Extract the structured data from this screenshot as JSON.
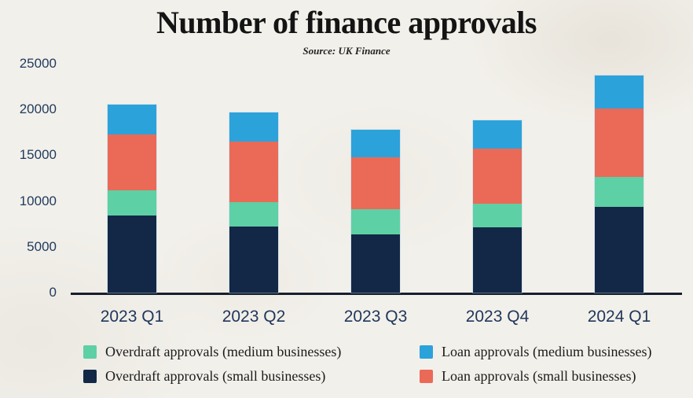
{
  "page": {
    "title": "Number of finance approvals",
    "subtitle": "Source: UK Finance"
  },
  "colors": {
    "background": "#f2f0ea",
    "axis_line": "#161f2e",
    "axis_label": "#1e3a5e",
    "title_text": "#141414",
    "overdraft_small": "#132846",
    "overdraft_medium": "#5ED0A5",
    "loan_small": "#EA6A57",
    "loan_medium": "#2CA2DB"
  },
  "chart_data": {
    "type": "bar",
    "stacked": true,
    "title": "Number of finance approvals",
    "subtitle": "Source: UK Finance",
    "xlabel": "",
    "ylabel": "",
    "categories": [
      "2023 Q1",
      "2023 Q2",
      "2023 Q3",
      "2023 Q4",
      "2024 Q1"
    ],
    "series": [
      {
        "name": "Overdraft approvals (small businesses)",
        "color": "#132846",
        "values": [
          8400,
          7200,
          6400,
          7100,
          9400
        ]
      },
      {
        "name": "Overdraft approvals (medium businesses)",
        "color": "#5ED0A5",
        "values": [
          2800,
          2700,
          2700,
          2600,
          3200
        ]
      },
      {
        "name": "Loan approvals (small businesses)",
        "color": "#EA6A57",
        "values": [
          6100,
          6600,
          5700,
          6000,
          7500
        ]
      },
      {
        "name": "Loan approvals (medium businesses)",
        "color": "#2CA2DB",
        "values": [
          3200,
          3200,
          3000,
          3100,
          3600
        ]
      }
    ],
    "stack_order_bottom_to_top": [
      "Overdraft approvals (small businesses)",
      "Overdraft approvals (medium businesses)",
      "Loan approvals (small businesses)",
      "Loan approvals (medium businesses)"
    ],
    "totals": [
      20500,
      19700,
      17800,
      18800,
      23700
    ],
    "ylim": [
      0,
      25000
    ],
    "y_ticks": [
      0,
      5000,
      10000,
      15000,
      20000,
      25000
    ],
    "grid": false,
    "legend_position": "bottom"
  },
  "legend": {
    "columns": [
      {
        "items": [
          {
            "label": "Overdraft approvals (medium businesses)",
            "color": "#5ED0A5"
          },
          {
            "label": "Overdraft approvals (small businesses)",
            "color": "#132846"
          }
        ]
      },
      {
        "items": [
          {
            "label": "Loan approvals (medium businesses)",
            "color": "#2CA2DB"
          },
          {
            "label": "Loan approvals (small businesses)",
            "color": "#EA6A57"
          }
        ]
      }
    ]
  }
}
